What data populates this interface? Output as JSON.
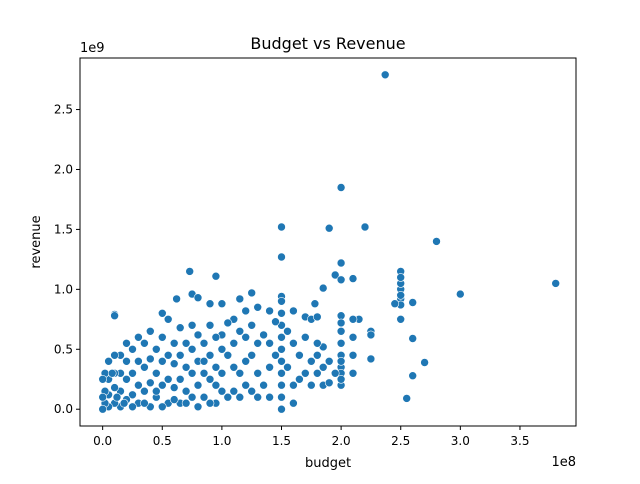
{
  "chart_data": {
    "type": "scatter",
    "title": "Budget vs Revenue",
    "xlabel": "budget",
    "ylabel": "revenue",
    "x_offset_text": "1e8",
    "y_offset_text": "1e9",
    "xlim": [
      -0.19,
      3.97
    ],
    "ylim": [
      -0.14,
      2.93
    ],
    "x_ticks": [
      0.0,
      0.5,
      1.0,
      1.5,
      2.0,
      2.5,
      3.0,
      3.5
    ],
    "x_tick_labels": [
      "0.0",
      "0.5",
      "1.0",
      "1.5",
      "2.0",
      "2.5",
      "3.0",
      "3.5"
    ],
    "y_ticks": [
      0.0,
      0.5,
      1.0,
      1.5,
      2.0,
      2.5
    ],
    "y_tick_labels": [
      "0.0",
      "0.5",
      "1.0",
      "1.5",
      "2.0",
      "2.5"
    ],
    "grid": false,
    "legend": "none",
    "marker_color": "#1f77b4",
    "marker_edge_color": "#ffffff",
    "points": [
      [
        2.37,
        2.79
      ],
      [
        2.0,
        1.85
      ],
      [
        2.2,
        1.52
      ],
      [
        1.9,
        1.51
      ],
      [
        1.5,
        1.52
      ],
      [
        2.8,
        1.4
      ],
      [
        1.5,
        1.27
      ],
      [
        2.0,
        1.22
      ],
      [
        2.5,
        1.15
      ],
      [
        0.73,
        1.15
      ],
      [
        0.95,
        1.11
      ],
      [
        2.1,
        1.09
      ],
      [
        3.8,
        1.05
      ],
      [
        1.95,
        1.12
      ],
      [
        2.0,
        1.08
      ],
      [
        2.5,
        1.0
      ],
      [
        3.0,
        0.96
      ],
      [
        1.85,
        1.01
      ],
      [
        2.5,
        0.92
      ],
      [
        2.5,
        0.87
      ],
      [
        2.6,
        0.89
      ],
      [
        1.78,
        0.88
      ],
      [
        2.45,
        0.88
      ],
      [
        2.15,
        0.75
      ],
      [
        2.5,
        0.75
      ],
      [
        2.25,
        0.65
      ],
      [
        2.25,
        0.62
      ],
      [
        2.6,
        0.59
      ],
      [
        2.25,
        0.42
      ],
      [
        2.7,
        0.39
      ],
      [
        2.6,
        0.28
      ],
      [
        2.55,
        0.09
      ],
      [
        0.1,
        0.79
      ],
      [
        0.1,
        0.78
      ],
      [
        0.62,
        0.92
      ],
      [
        0.75,
        0.96
      ],
      [
        0.8,
        0.93
      ],
      [
        0.9,
        0.88
      ],
      [
        1.0,
        0.88
      ],
      [
        1.15,
        0.92
      ],
      [
        1.25,
        0.97
      ],
      [
        1.4,
        0.82
      ],
      [
        1.5,
        0.94
      ],
      [
        1.5,
        0.9
      ],
      [
        1.6,
        0.82
      ],
      [
        1.7,
        0.77
      ],
      [
        1.75,
        0.75
      ],
      [
        1.8,
        0.77
      ],
      [
        2.0,
        0.78
      ],
      [
        2.0,
        0.72
      ],
      [
        2.0,
        0.65
      ],
      [
        2.0,
        0.55
      ],
      [
        2.0,
        0.45
      ],
      [
        2.0,
        0.35
      ],
      [
        2.0,
        0.3
      ],
      [
        2.0,
        0.2
      ],
      [
        1.85,
        0.52
      ],
      [
        1.8,
        0.45
      ],
      [
        1.75,
        0.4
      ],
      [
        1.7,
        0.3
      ],
      [
        1.75,
        0.2
      ],
      [
        1.85,
        0.2
      ],
      [
        1.9,
        0.22
      ],
      [
        1.6,
        0.55
      ],
      [
        1.6,
        0.2
      ],
      [
        1.6,
        0.05
      ],
      [
        1.5,
        0.8
      ],
      [
        1.5,
        0.7
      ],
      [
        1.5,
        0.6
      ],
      [
        1.5,
        0.5
      ],
      [
        1.5,
        0.4
      ],
      [
        1.5,
        0.3
      ],
      [
        1.5,
        0.2
      ],
      [
        1.5,
        0.1
      ],
      [
        1.5,
        0.0
      ],
      [
        1.45,
        0.73
      ],
      [
        1.4,
        0.55
      ],
      [
        1.4,
        0.35
      ],
      [
        1.4,
        0.1
      ],
      [
        1.35,
        0.62
      ],
      [
        1.3,
        0.85
      ],
      [
        1.3,
        0.55
      ],
      [
        1.3,
        0.3
      ],
      [
        1.3,
        0.1
      ],
      [
        1.25,
        0.7
      ],
      [
        1.25,
        0.45
      ],
      [
        1.2,
        0.82
      ],
      [
        1.2,
        0.6
      ],
      [
        1.2,
        0.4
      ],
      [
        1.2,
        0.2
      ],
      [
        1.15,
        0.65
      ],
      [
        1.15,
        0.3
      ],
      [
        1.1,
        0.75
      ],
      [
        1.1,
        0.55
      ],
      [
        1.1,
        0.35
      ],
      [
        1.1,
        0.15
      ],
      [
        1.05,
        0.72
      ],
      [
        1.05,
        0.45
      ],
      [
        1.0,
        0.62
      ],
      [
        1.0,
        0.5
      ],
      [
        1.0,
        0.3
      ],
      [
        1.0,
        0.15
      ],
      [
        0.95,
        0.6
      ],
      [
        0.95,
        0.35
      ],
      [
        0.95,
        0.05
      ],
      [
        0.9,
        0.7
      ],
      [
        0.9,
        0.45
      ],
      [
        0.9,
        0.25
      ],
      [
        0.9,
        0.05
      ],
      [
        0.85,
        0.55
      ],
      [
        0.85,
        0.3
      ],
      [
        0.85,
        0.1
      ],
      [
        0.8,
        0.62
      ],
      [
        0.8,
        0.4
      ],
      [
        0.8,
        0.2
      ],
      [
        0.8,
        0.02
      ],
      [
        0.75,
        0.7
      ],
      [
        0.75,
        0.5
      ],
      [
        0.75,
        0.3
      ],
      [
        0.75,
        0.1
      ],
      [
        0.7,
        0.55
      ],
      [
        0.7,
        0.35
      ],
      [
        0.7,
        0.15
      ],
      [
        0.65,
        0.68
      ],
      [
        0.65,
        0.45
      ],
      [
        0.65,
        0.25
      ],
      [
        0.65,
        0.05
      ],
      [
        0.6,
        0.55
      ],
      [
        0.6,
        0.38
      ],
      [
        0.6,
        0.18
      ],
      [
        0.55,
        0.75
      ],
      [
        0.55,
        0.45
      ],
      [
        0.55,
        0.25
      ],
      [
        0.55,
        0.05
      ],
      [
        0.5,
        0.8
      ],
      [
        0.5,
        0.6
      ],
      [
        0.5,
        0.4
      ],
      [
        0.5,
        0.2
      ],
      [
        0.5,
        0.02
      ],
      [
        0.45,
        0.5
      ],
      [
        0.45,
        0.3
      ],
      [
        0.45,
        0.1
      ],
      [
        0.4,
        0.65
      ],
      [
        0.4,
        0.42
      ],
      [
        0.4,
        0.22
      ],
      [
        0.4,
        0.02
      ],
      [
        0.35,
        0.55
      ],
      [
        0.35,
        0.35
      ],
      [
        0.35,
        0.15
      ],
      [
        0.3,
        0.6
      ],
      [
        0.3,
        0.4
      ],
      [
        0.3,
        0.2
      ],
      [
        0.3,
        0.05
      ],
      [
        0.25,
        0.5
      ],
      [
        0.25,
        0.3
      ],
      [
        0.25,
        0.12
      ],
      [
        0.2,
        0.55
      ],
      [
        0.2,
        0.4
      ],
      [
        0.2,
        0.25
      ],
      [
        0.2,
        0.08
      ],
      [
        0.15,
        0.45
      ],
      [
        0.15,
        0.3
      ],
      [
        0.15,
        0.15
      ],
      [
        0.15,
        0.02
      ],
      [
        0.1,
        0.45
      ],
      [
        0.1,
        0.3
      ],
      [
        0.1,
        0.18
      ],
      [
        0.1,
        0.05
      ],
      [
        0.05,
        0.4
      ],
      [
        0.05,
        0.25
      ],
      [
        0.05,
        0.12
      ],
      [
        0.05,
        0.02
      ],
      [
        0.02,
        0.3
      ],
      [
        0.02,
        0.15
      ],
      [
        0.02,
        0.05
      ],
      [
        0.0,
        0.25
      ],
      [
        0.0,
        0.1
      ],
      [
        0.0,
        0.0
      ],
      [
        1.55,
        0.35
      ],
      [
        1.65,
        0.45
      ],
      [
        1.65,
        0.25
      ],
      [
        1.7,
        0.6
      ],
      [
        1.55,
        0.65
      ],
      [
        1.45,
        0.45
      ],
      [
        1.35,
        0.2
      ],
      [
        1.25,
        0.15
      ],
      [
        1.15,
        0.1
      ],
      [
        1.05,
        0.1
      ],
      [
        0.95,
        0.2
      ],
      [
        0.85,
        0.4
      ],
      [
        0.7,
        0.05
      ],
      [
        0.6,
        0.08
      ],
      [
        0.45,
        0.15
      ],
      [
        0.35,
        0.05
      ],
      [
        0.25,
        0.02
      ],
      [
        0.18,
        0.05
      ],
      [
        0.12,
        0.1
      ],
      [
        0.08,
        0.3
      ],
      [
        2.1,
        0.3
      ],
      [
        2.1,
        0.45
      ],
      [
        2.1,
        0.6
      ],
      [
        2.1,
        0.75
      ],
      [
        2.0,
        0.4
      ],
      [
        2.0,
        0.25
      ],
      [
        1.95,
        0.3
      ],
      [
        1.9,
        0.4
      ],
      [
        1.85,
        0.35
      ],
      [
        1.8,
        0.3
      ],
      [
        1.8,
        0.55
      ],
      [
        2.5,
        1.05
      ],
      [
        2.5,
        0.95
      ],
      [
        2.5,
        1.1
      ]
    ]
  }
}
